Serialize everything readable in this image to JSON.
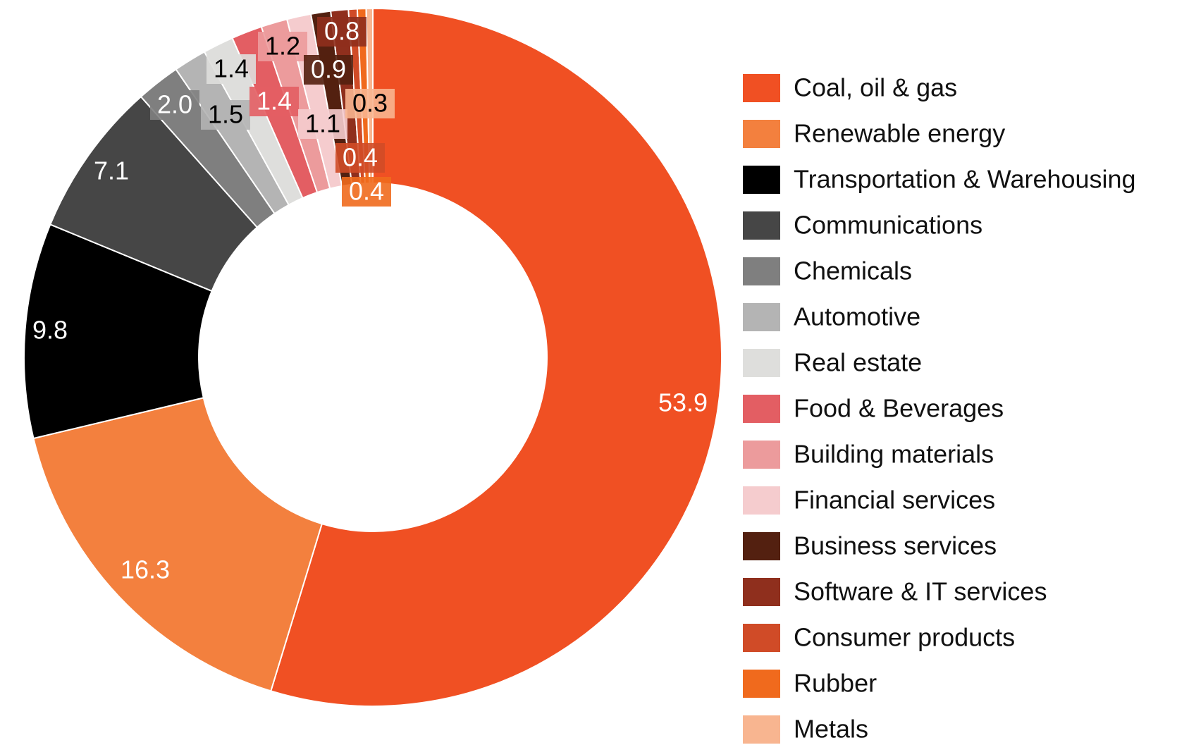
{
  "chart_data": {
    "type": "donut",
    "categories": [
      "Coal, oil & gas",
      "Renewable energy",
      "Transportation & Warehousing",
      "Communications",
      "Chemicals",
      "Automotive",
      "Real estate",
      "Food & Beverages",
      "Building materials",
      "Financial services",
      "Business services",
      "Software & IT services",
      "Consumer products",
      "Rubber",
      "Metals"
    ],
    "values": [
      53.9,
      16.3,
      9.8,
      7.1,
      2.0,
      1.5,
      1.4,
      1.4,
      1.2,
      1.1,
      0.9,
      0.8,
      0.4,
      0.4,
      0.3
    ],
    "value_labels": [
      "53.9",
      "16.3",
      "9.8",
      "7.1",
      "2.0",
      "1.5",
      "1.4",
      "1.4",
      "1.2",
      "1.1",
      "0.9",
      "0.8",
      "0.4",
      "0.4",
      "0.3"
    ],
    "colors": [
      "#f05023",
      "#f3803e",
      "#000000",
      "#464646",
      "#7f7f7f",
      "#b4b4b4",
      "#dededc",
      "#e35e63",
      "#ec9b9c",
      "#f5ccce",
      "#532010",
      "#8f2f1d",
      "#d04b27",
      "#f06a1d",
      "#f8b590"
    ],
    "legend": "right"
  }
}
